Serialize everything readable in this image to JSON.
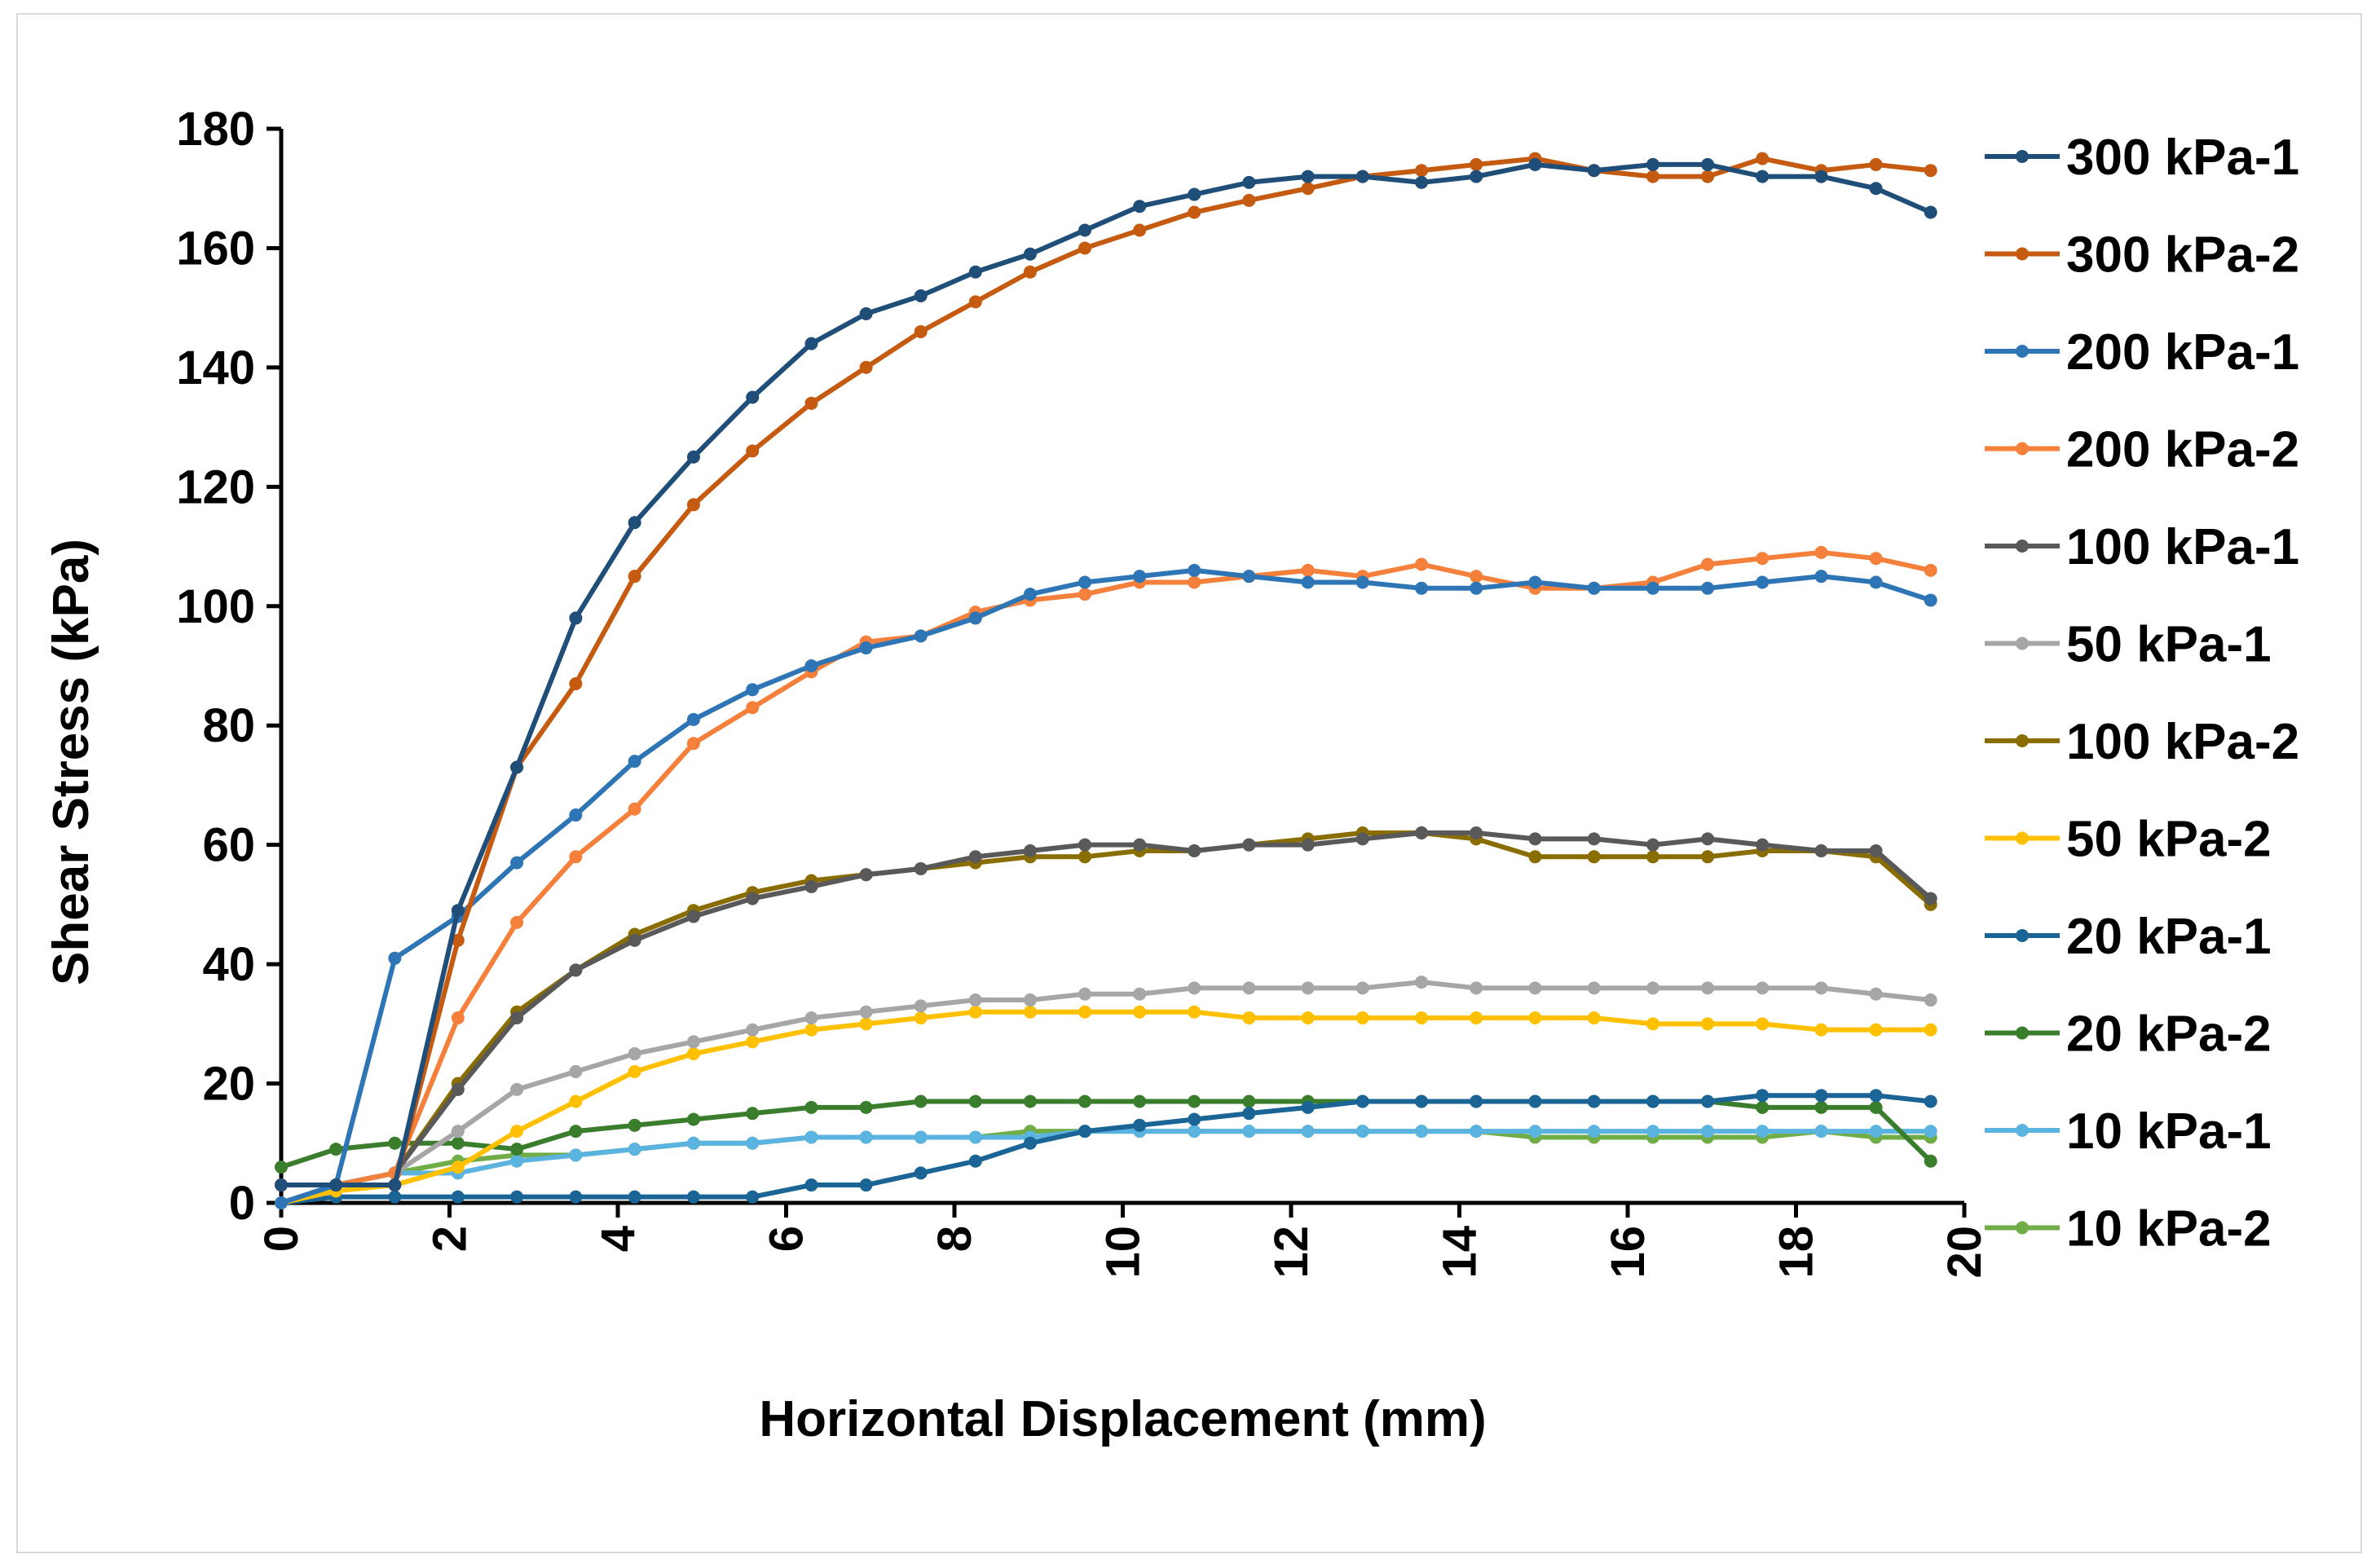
{
  "chart_data": {
    "type": "line",
    "title": "",
    "xlabel": "Horizontal Displacement (mm)",
    "ylabel": "Shear Stress (kPa)",
    "xlim": [
      0,
      20
    ],
    "ylim": [
      0,
      180
    ],
    "xticks": [
      0,
      2,
      4,
      6,
      8,
      10,
      12,
      14,
      16,
      18,
      20
    ],
    "yticks": [
      0,
      20,
      40,
      60,
      80,
      100,
      120,
      140,
      160,
      180
    ],
    "x": [
      0,
      0.65,
      1.35,
      2.1,
      2.8,
      3.5,
      4.2,
      4.9,
      5.6,
      6.3,
      6.95,
      7.6,
      8.25,
      8.9,
      9.55,
      10.2,
      10.85,
      11.5,
      12.2,
      12.85,
      13.55,
      14.2,
      14.9,
      15.6,
      16.3,
      16.95,
      17.6,
      18.3,
      18.95,
      19.6
    ],
    "series": [
      {
        "name": "300 kPa-1",
        "color": "#1f4e79",
        "values": [
          3,
          3,
          3,
          49,
          73,
          98,
          114,
          125,
          135,
          144,
          149,
          152,
          156,
          159,
          163,
          167,
          169,
          171,
          172,
          172,
          171,
          172,
          174,
          173,
          174,
          174,
          172,
          172,
          170,
          166
        ]
      },
      {
        "name": "300 kPa-2",
        "color": "#c55a11",
        "values": [
          3,
          3,
          3,
          44,
          73,
          87,
          105,
          117,
          126,
          134,
          140,
          146,
          151,
          156,
          160,
          163,
          166,
          168,
          170,
          172,
          173,
          174,
          175,
          173,
          172,
          172,
          175,
          173,
          174,
          173
        ]
      },
      {
        "name": "200 kPa-1",
        "color": "#2e75b6",
        "values": [
          0,
          3,
          41,
          48,
          57,
          65,
          74,
          81,
          86,
          90,
          93,
          95,
          98,
          102,
          104,
          105,
          106,
          105,
          104,
          104,
          103,
          103,
          104,
          103,
          103,
          103,
          104,
          105,
          104,
          101
        ]
      },
      {
        "name": "200 kPa-2",
        "color": "#f4803b",
        "values": [
          3,
          3,
          5,
          31,
          47,
          58,
          66,
          77,
          83,
          89,
          94,
          95,
          99,
          101,
          102,
          104,
          104,
          105,
          106,
          105,
          107,
          105,
          103,
          103,
          104,
          107,
          108,
          109,
          108,
          106
        ]
      },
      {
        "name": "100 kPa-1",
        "color": "#595959",
        "values": [
          3,
          3,
          5,
          19,
          31,
          39,
          44,
          48,
          51,
          53,
          55,
          56,
          58,
          59,
          60,
          60,
          59,
          60,
          60,
          61,
          62,
          62,
          61,
          61,
          60,
          61,
          60,
          59,
          59,
          51
        ]
      },
      {
        "name": "50 kPa-1",
        "color": "#a6a6a6",
        "values": [
          0,
          3,
          5,
          12,
          19,
          22,
          25,
          27,
          29,
          31,
          32,
          33,
          34,
          34,
          35,
          35,
          36,
          36,
          36,
          36,
          37,
          36,
          36,
          36,
          36,
          36,
          36,
          36,
          35,
          34
        ]
      },
      {
        "name": "100 kPa-2",
        "color": "#8a6d00",
        "values": [
          3,
          3,
          5,
          20,
          32,
          39,
          45,
          49,
          52,
          54,
          55,
          56,
          57,
          58,
          58,
          59,
          59,
          60,
          61,
          62,
          62,
          61,
          58,
          58,
          58,
          58,
          59,
          59,
          58,
          50
        ]
      },
      {
        "name": "50 kPa-2",
        "color": "#ffc000",
        "values": [
          0,
          2,
          3,
          6,
          12,
          17,
          22,
          25,
          27,
          29,
          30,
          31,
          32,
          32,
          32,
          32,
          32,
          31,
          31,
          31,
          31,
          31,
          31,
          31,
          30,
          30,
          30,
          29,
          29,
          29
        ]
      },
      {
        "name": "20 kPa-1",
        "color": "#1a6496",
        "values": [
          0,
          1,
          1,
          1,
          1,
          1,
          1,
          1,
          1,
          3,
          3,
          5,
          7,
          10,
          12,
          13,
          14,
          15,
          16,
          17,
          17,
          17,
          17,
          17,
          17,
          17,
          18,
          18,
          18,
          17
        ]
      },
      {
        "name": "20 kPa-2",
        "color": "#3a7d2c",
        "values": [
          6,
          9,
          10,
          10,
          9,
          12,
          13,
          14,
          15,
          16,
          16,
          17,
          17,
          17,
          17,
          17,
          17,
          17,
          17,
          17,
          17,
          17,
          17,
          17,
          17,
          17,
          16,
          16,
          16,
          7
        ]
      },
      {
        "name": "10 kPa-1",
        "color": "#5bb3e0",
        "values": [
          0,
          3,
          5,
          5,
          7,
          8,
          9,
          10,
          10,
          11,
          11,
          11,
          11,
          11,
          12,
          12,
          12,
          12,
          12,
          12,
          12,
          12,
          12,
          12,
          12,
          12,
          12,
          12,
          12,
          12
        ]
      },
      {
        "name": "10 kPa-2",
        "color": "#70ad47",
        "values": [
          0,
          3,
          5,
          7,
          8,
          8,
          9,
          10,
          10,
          11,
          11,
          11,
          11,
          12,
          12,
          12,
          12,
          12,
          12,
          12,
          12,
          12,
          11,
          11,
          11,
          11,
          11,
          12,
          11,
          11
        ]
      }
    ],
    "legend_position": "right",
    "grid": false
  }
}
